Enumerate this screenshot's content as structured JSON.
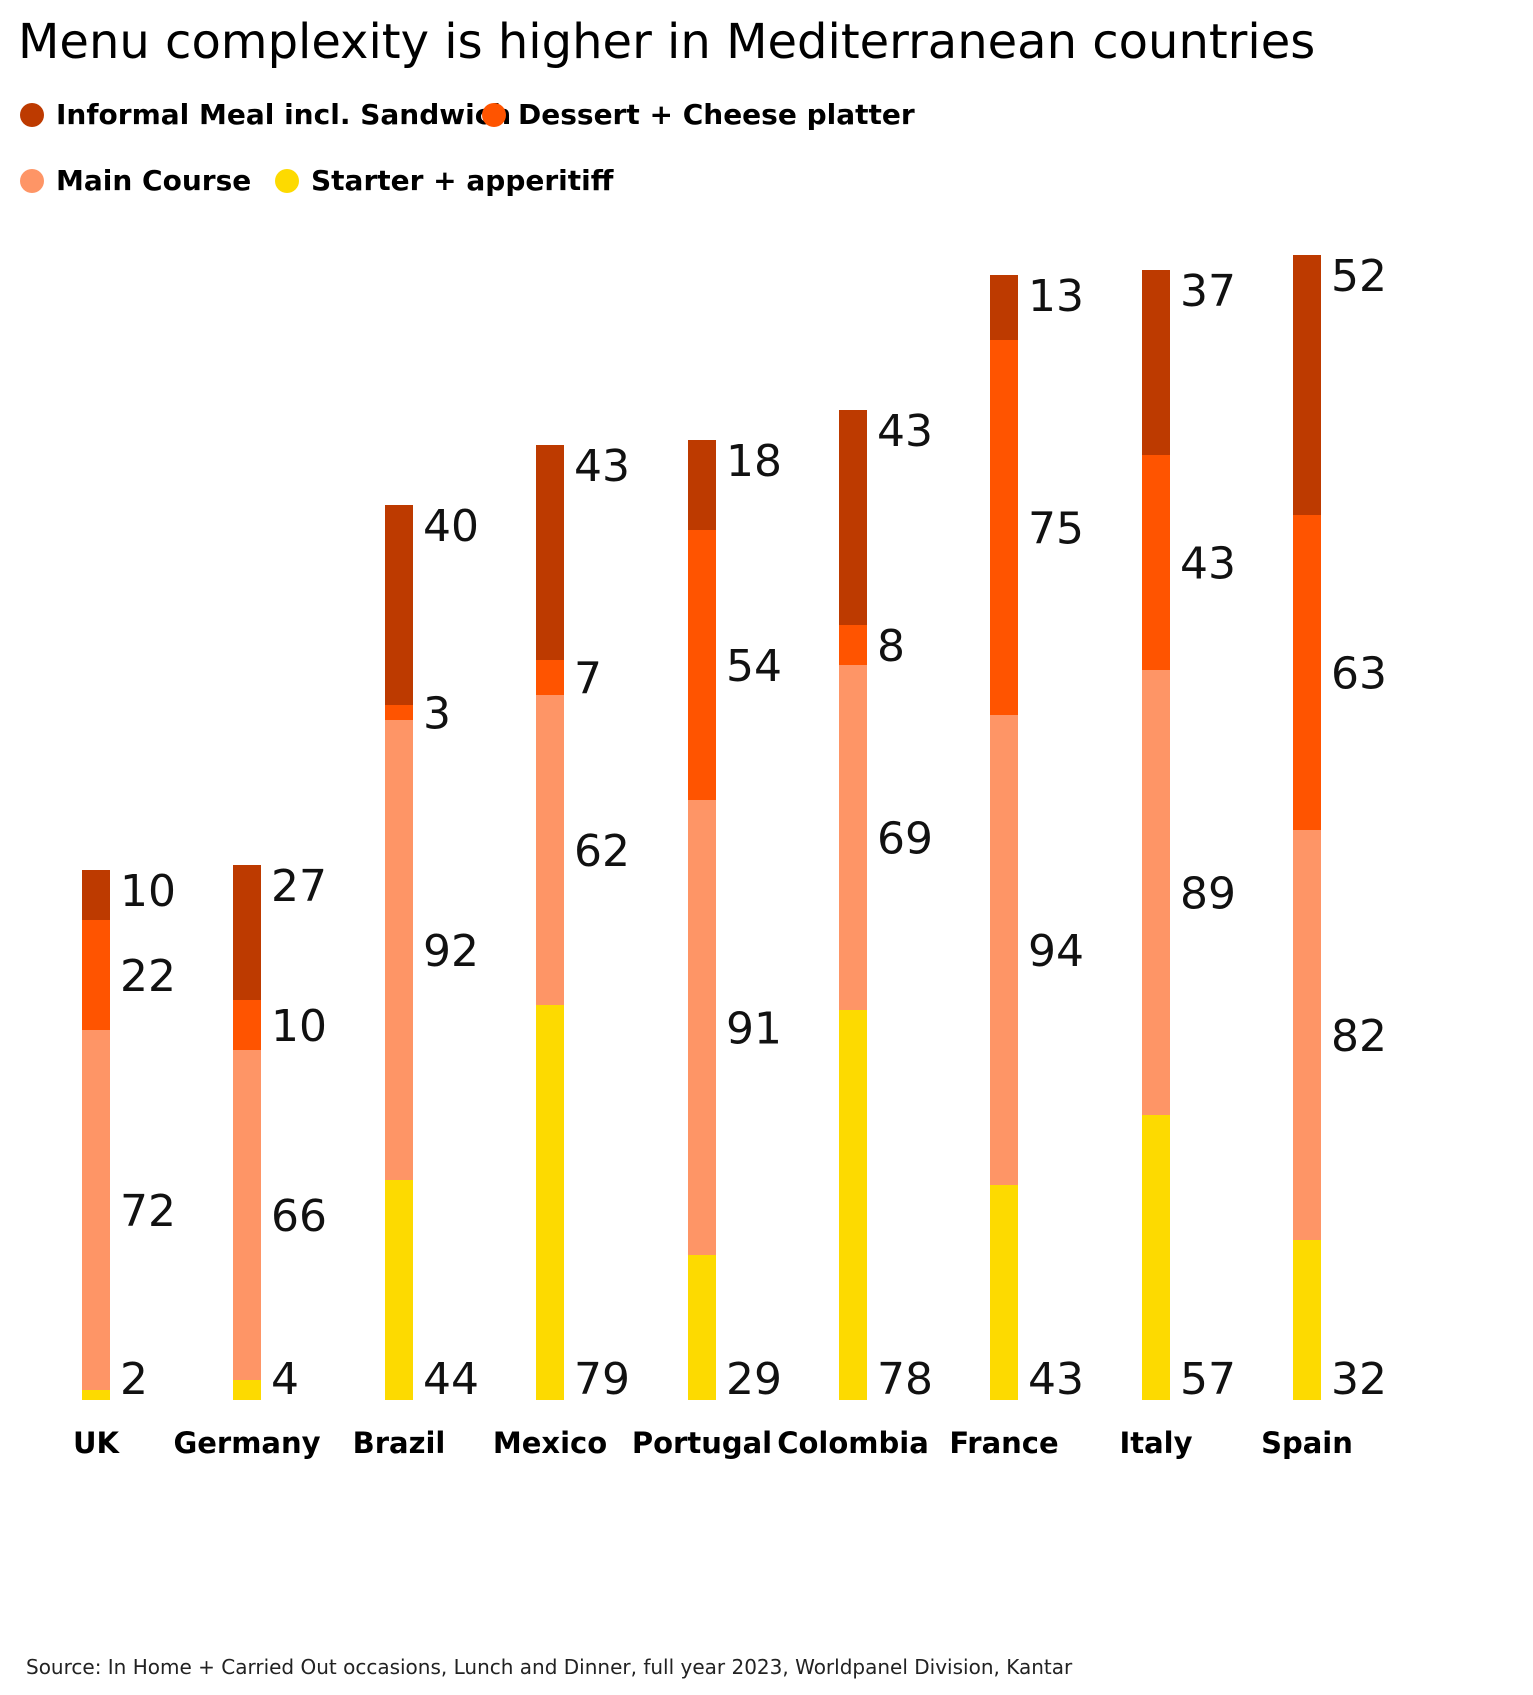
{
  "title": "Menu complexity is higher in Mediterranean countries",
  "legend": [
    {
      "label": "Informal Meal incl. Sandwich",
      "color": "#BD3A00"
    },
    {
      "label": "Dessert + Cheese platter",
      "color": "#FF5400"
    },
    {
      "label": "Main Course",
      "color": "#FE9566"
    },
    {
      "label": "Starter + apperitiff",
      "color": "#FDDA00"
    }
  ],
  "source": "Source: In Home + Carried Out occasions, Lunch and Dinner, full year 2023, Worldpanel Division, Kantar",
  "chart_data": {
    "type": "bar",
    "stacked": true,
    "title": "Menu complexity is higher in Mediterranean countries",
    "categories": [
      "UK",
      "Germany",
      "Brazil",
      "Mexico",
      "Portugal",
      "Colombia",
      "France",
      "Italy",
      "Spain"
    ],
    "series": [
      {
        "name": "Starter + apperitiff",
        "color": "#FDDA00",
        "values": [
          2,
          4,
          44,
          79,
          29,
          78,
          43,
          57,
          32
        ]
      },
      {
        "name": "Main Course",
        "color": "#FE9566",
        "values": [
          72,
          66,
          92,
          62,
          91,
          69,
          94,
          89,
          82
        ]
      },
      {
        "name": "Dessert + Cheese platter",
        "color": "#FF5400",
        "values": [
          22,
          10,
          3,
          7,
          54,
          8,
          75,
          43,
          63
        ]
      },
      {
        "name": "Informal Meal incl. Sandwich",
        "color": "#BD3A00",
        "values": [
          10,
          27,
          40,
          43,
          18,
          43,
          13,
          37,
          52
        ]
      }
    ],
    "ylim": [
      0,
      235
    ],
    "grid": false,
    "legend_position": "top-left"
  }
}
